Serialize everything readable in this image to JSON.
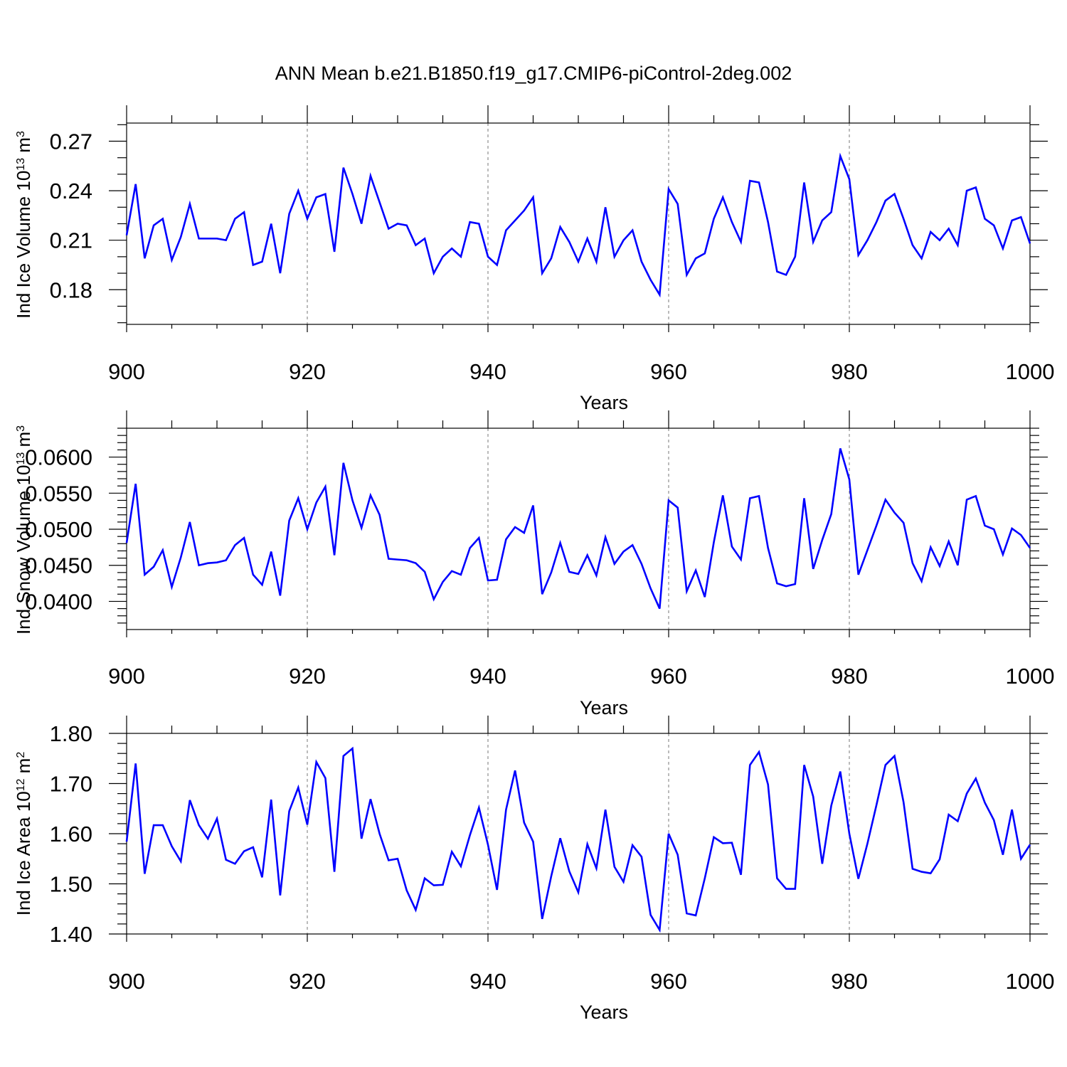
{
  "title": "ANN Mean b.e21.B1850.f19_g17.CMIP6-piControl-2deg.002",
  "colors": {
    "series": "#0000ff",
    "axes": "#000000",
    "gridline": "#777777"
  },
  "chart_data": [
    {
      "type": "line",
      "ylabel_main": "Ind Ice Volume 10",
      "ylabel_sup": "13",
      "ylabel_unit": " m",
      "ylabel_unit_sup": "3",
      "xlabel": "Years",
      "xlim": [
        900,
        1000
      ],
      "ylim": [
        0.159,
        0.281
      ],
      "x_ticks": [
        900,
        920,
        940,
        960,
        980,
        1000
      ],
      "x_tick_labels": [
        "900",
        "920",
        "940",
        "960",
        "980",
        "1000"
      ],
      "y_ticks": [
        0.18,
        0.21,
        0.24,
        0.27
      ],
      "y_tick_labels": [
        "0.18",
        "0.21",
        "0.24",
        "0.27"
      ],
      "y_minor_step": 0.01,
      "grid_x": true,
      "x_start": 900,
      "values": [
        0.213,
        0.244,
        0.199,
        0.219,
        0.223,
        0.198,
        0.212,
        0.232,
        0.211,
        0.211,
        0.211,
        0.21,
        0.223,
        0.227,
        0.195,
        0.197,
        0.22,
        0.19,
        0.226,
        0.24,
        0.223,
        0.236,
        0.238,
        0.203,
        0.254,
        0.238,
        0.22,
        0.249,
        0.233,
        0.217,
        0.22,
        0.219,
        0.207,
        0.211,
        0.19,
        0.2,
        0.205,
        0.2,
        0.221,
        0.22,
        0.2,
        0.195,
        0.216,
        0.222,
        0.228,
        0.236,
        0.19,
        0.199,
        0.218,
        0.209,
        0.197,
        0.211,
        0.197,
        0.23,
        0.2,
        0.21,
        0.216,
        0.197,
        0.186,
        0.177,
        0.241,
        0.232,
        0.189,
        0.199,
        0.202,
        0.223,
        0.236,
        0.221,
        0.209,
        0.246,
        0.245,
        0.221,
        0.191,
        0.189,
        0.2,
        0.245,
        0.209,
        0.222,
        0.227,
        0.261,
        0.247,
        0.201,
        0.21,
        0.221,
        0.234,
        0.238,
        0.223,
        0.207,
        0.199,
        0.215,
        0.21,
        0.217,
        0.207,
        0.24,
        0.242,
        0.223,
        0.219,
        0.205,
        0.222,
        0.224,
        0.208
      ]
    },
    {
      "type": "line",
      "ylabel_main": "Ind Snow Volume 10",
      "ylabel_sup": "13",
      "ylabel_unit": " m",
      "ylabel_unit_sup": "3",
      "xlabel": "Years",
      "xlim": [
        900,
        1000
      ],
      "ylim": [
        0.0361,
        0.064
      ],
      "x_ticks": [
        900,
        920,
        940,
        960,
        980,
        1000
      ],
      "x_tick_labels": [
        "900",
        "920",
        "940",
        "960",
        "980",
        "1000"
      ],
      "y_ticks": [
        0.04,
        0.045,
        0.05,
        0.055,
        0.06
      ],
      "y_tick_labels": [
        "0.0400",
        "0.0450",
        "0.0500",
        "0.0550",
        "0.0600"
      ],
      "y_minor_step": 0.001,
      "grid_x": true,
      "x_start": 900,
      "values": [
        0.0481,
        0.0563,
        0.0437,
        0.0448,
        0.0471,
        0.042,
        0.0461,
        0.051,
        0.045,
        0.0453,
        0.0454,
        0.0457,
        0.0478,
        0.0488,
        0.0437,
        0.0423,
        0.0469,
        0.0408,
        0.0512,
        0.0543,
        0.05,
        0.0537,
        0.0559,
        0.0464,
        0.0592,
        0.054,
        0.0502,
        0.0547,
        0.052,
        0.0459,
        0.0458,
        0.0457,
        0.0453,
        0.0441,
        0.0403,
        0.0427,
        0.0442,
        0.0437,
        0.0474,
        0.0488,
        0.0429,
        0.043,
        0.0486,
        0.0503,
        0.0495,
        0.0533,
        0.041,
        0.044,
        0.0481,
        0.0441,
        0.0438,
        0.0464,
        0.0436,
        0.0489,
        0.0452,
        0.0469,
        0.0478,
        0.0452,
        0.0418,
        0.039,
        0.054,
        0.053,
        0.0414,
        0.0443,
        0.0406,
        0.0482,
        0.0547,
        0.0476,
        0.0458,
        0.0543,
        0.0546,
        0.0474,
        0.0425,
        0.0421,
        0.0424,
        0.0543,
        0.0445,
        0.0485,
        0.0521,
        0.0612,
        0.0569,
        0.0437,
        0.0471,
        0.0505,
        0.0541,
        0.0523,
        0.0509,
        0.0453,
        0.0428,
        0.0475,
        0.0449,
        0.0483,
        0.045,
        0.0541,
        0.0546,
        0.0505,
        0.05,
        0.0465,
        0.0501,
        0.0492,
        0.0474
      ]
    },
    {
      "type": "line",
      "ylabel_main": "Ind Ice Area 10",
      "ylabel_sup": "12",
      "ylabel_unit": " m",
      "ylabel_unit_sup": "2",
      "xlabel": "Years",
      "xlim": [
        900,
        1000
      ],
      "ylim": [
        1.4,
        1.8
      ],
      "x_ticks": [
        900,
        920,
        940,
        960,
        980,
        1000
      ],
      "x_tick_labels": [
        "900",
        "920",
        "940",
        "960",
        "980",
        "1000"
      ],
      "y_ticks": [
        1.4,
        1.5,
        1.6,
        1.7,
        1.8
      ],
      "y_tick_labels": [
        "1.40",
        "1.50",
        "1.60",
        "1.70",
        "1.80"
      ],
      "y_minor_step": 0.02,
      "grid_x": true,
      "x_start": 900,
      "values": [
        1.584,
        1.74,
        1.52,
        1.617,
        1.617,
        1.575,
        1.545,
        1.667,
        1.617,
        1.59,
        1.63,
        1.548,
        1.54,
        1.565,
        1.573,
        1.513,
        1.668,
        1.477,
        1.645,
        1.692,
        1.618,
        1.743,
        1.711,
        1.524,
        1.755,
        1.77,
        1.59,
        1.669,
        1.6,
        1.547,
        1.55,
        1.487,
        1.448,
        1.511,
        1.497,
        1.498,
        1.564,
        1.535,
        1.597,
        1.652,
        1.578,
        1.488,
        1.648,
        1.726,
        1.622,
        1.584,
        1.43,
        1.515,
        1.591,
        1.525,
        1.483,
        1.579,
        1.531,
        1.648,
        1.534,
        1.504,
        1.577,
        1.554,
        1.438,
        1.408,
        1.6,
        1.558,
        1.441,
        1.437,
        1.511,
        1.593,
        1.581,
        1.582,
        1.518,
        1.737,
        1.763,
        1.698,
        1.511,
        1.49,
        1.49,
        1.737,
        1.674,
        1.54,
        1.656,
        1.724,
        1.6,
        1.51,
        1.58,
        1.657,
        1.737,
        1.755,
        1.663,
        1.53,
        1.524,
        1.521,
        1.549,
        1.638,
        1.625,
        1.68,
        1.71,
        1.662,
        1.627,
        1.558,
        1.648,
        1.55,
        1.578
      ]
    }
  ]
}
